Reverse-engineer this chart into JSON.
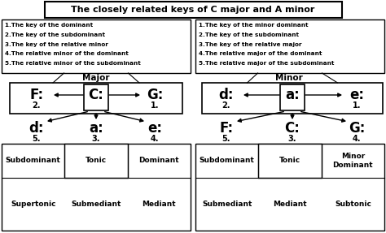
{
  "title": "The closely related keys of C major and A minor",
  "bg_color": "#ffffff",
  "border_color": "#000000",
  "left_box_lines": [
    "1.The key of the dominant",
    "2.The key of the subdominant",
    "3.The key of the relative minor",
    "4.The relative minor of the dominant",
    "5.The relative minor of the subdominant"
  ],
  "right_box_lines": [
    "1.The key of the minor dominant",
    "2.The key of the subdominant",
    "3.The key of the relative major",
    "4.The relative major of the dominant",
    "5.The relative major of the subdominant"
  ],
  "left_label": "Major",
  "right_label": "Minor",
  "left_bottom_top": [
    "Subdominant",
    "Tonic",
    "Dominant"
  ],
  "left_bottom_bot": [
    "Supertonic",
    "Submediant",
    "Mediant"
  ],
  "right_bottom_top": [
    "Subdominant",
    "Tonic",
    "Minor\nDominant"
  ],
  "right_bottom_bot": [
    "Submediant",
    "Mediant",
    "Subtonic"
  ]
}
